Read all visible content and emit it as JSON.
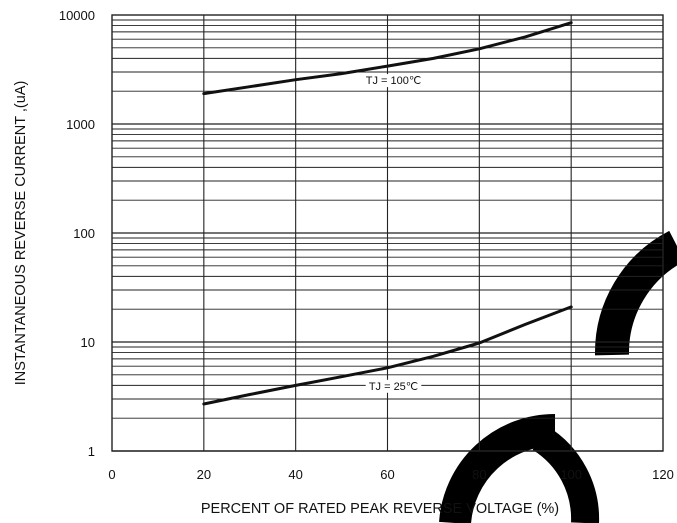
{
  "chart_data": {
    "type": "line",
    "title": "",
    "xlabel": "PERCENT OF RATED PEAK REVERSE VOLTAGE (%)",
    "ylabel": "INSTANTANEOUS REVERSE CURRENT ,(uA)",
    "xlim": [
      0,
      120
    ],
    "ylim": [
      1,
      10000
    ],
    "yscale": "log",
    "grid": true,
    "x_ticks": [
      "0",
      "20",
      "40",
      "60",
      "80",
      "100",
      "120"
    ],
    "y_ticks": [
      "1",
      "10",
      "100",
      "1000",
      "10000"
    ],
    "series": [
      {
        "name": "TJ = 100℃",
        "x": [
          20,
          30,
          40,
          50,
          60,
          70,
          80,
          90,
          100
        ],
        "y": [
          1900,
          2200,
          2550,
          2900,
          3400,
          4000,
          4900,
          6300,
          8500
        ]
      },
      {
        "name": "TJ = 25℃",
        "x": [
          20,
          30,
          40,
          50,
          60,
          70,
          80,
          90,
          100
        ],
        "y": [
          2.7,
          3.3,
          4.0,
          4.8,
          5.8,
          7.4,
          9.8,
          14.5,
          21
        ]
      }
    ],
    "colors": {
      "line": "#111111",
      "grid": "#222222",
      "watermark": "#000000"
    }
  }
}
